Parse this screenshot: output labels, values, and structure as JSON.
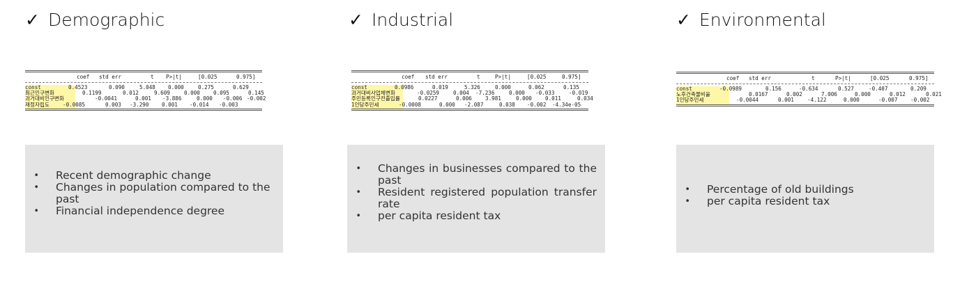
{
  "columns": [
    {
      "check": "✓",
      "title": "Demographic",
      "header": [
        "coef",
        "std err",
        "t",
        "P>|t|",
        "[0.025",
        "0.975]"
      ],
      "rows": [
        {
          "name": "const",
          "values": [
            "0.4523",
            "0.090",
            "5.048",
            "0.000",
            "0.275",
            "0.629"
          ]
        },
        {
          "name": "최근인구변화",
          "values": [
            "0.1199",
            "0.012",
            "9.609",
            "0.000",
            "0.095",
            "0.145"
          ]
        },
        {
          "name": "과거대비인구변화",
          "values": [
            "-0.0041",
            "0.001",
            "-3.886",
            "0.000",
            "-0.006",
            "-0.002"
          ]
        },
        {
          "name": "재정자립도",
          "values": [
            "-0.0085",
            "0.003",
            "-3.290",
            "0.001",
            "-0.014",
            "-0.003"
          ]
        }
      ],
      "bullets": [
        "Recent demographic change",
        "Changes in population compared to the past",
        "Financial independence degree"
      ]
    },
    {
      "check": "✓",
      "title": "Industrial",
      "header": [
        "coef",
        "std err",
        "t",
        "P>|t|",
        "[0.025",
        "0.975]"
      ],
      "rows": [
        {
          "name": "const",
          "values": [
            "0.0986",
            "0.019",
            "5.326",
            "0.000",
            "0.062",
            "0.135"
          ]
        },
        {
          "name": "과거대비사업체변화",
          "values": [
            "-0.0259",
            "0.004",
            "-7.236",
            "0.000",
            "-0.033",
            "-0.019"
          ]
        },
        {
          "name": "주민등록인구전출입률",
          "values": [
            "0.0227",
            "0.006",
            "3.981",
            "0.000",
            "0.011",
            "0.034"
          ]
        },
        {
          "name": "1인당주민세",
          "values": [
            "-0.0008",
            "0.000",
            "-2.087",
            "0.038",
            "-0.002",
            "-4.34e-05"
          ]
        }
      ],
      "bullets": [
        "Changes in businesses compared to the past",
        "Resident registered population transfer rate",
        "per capita resident tax"
      ]
    },
    {
      "check": "✓",
      "title": "Environmental",
      "header": [
        "coef",
        "std err",
        "t",
        "P>|t|",
        "[0.025",
        "0.975]"
      ],
      "rows": [
        {
          "name": "const",
          "values": [
            "-0.0989",
            "0.156",
            "-0.634",
            "0.527",
            "-0.407",
            "0.209"
          ]
        },
        {
          "name": "노후건축물비율",
          "values": [
            "0.0167",
            "0.002",
            "7.006",
            "0.000",
            "0.012",
            "0.021"
          ]
        },
        {
          "name": "1인당주민세",
          "values": [
            "-0.0044",
            "0.001",
            "-4.122",
            "0.000",
            "-0.007",
            "-0.002"
          ]
        }
      ],
      "bullets": [
        "Percentage of old buildings",
        "per capita resident tax"
      ]
    }
  ],
  "colors": {
    "highlight": "#fff7a8",
    "box_background": "#e4e4e4",
    "text": "#333333"
  }
}
